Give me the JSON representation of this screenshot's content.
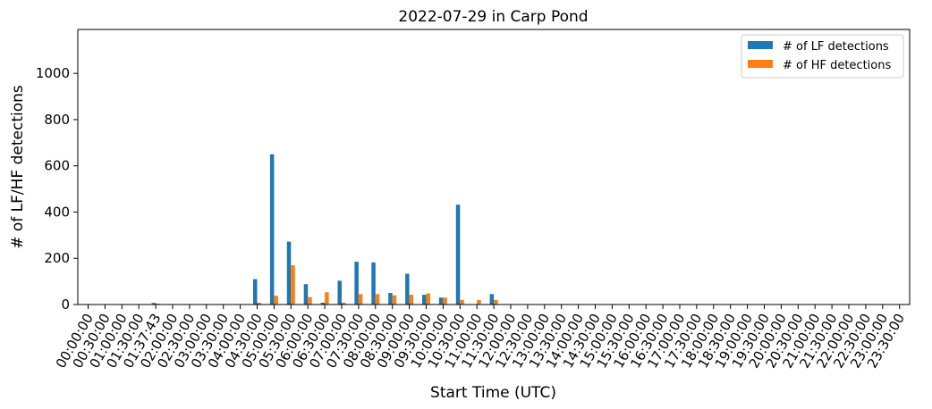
{
  "chart_data": {
    "type": "bar",
    "title": "2022-07-29 in Carp Pond",
    "xlabel": "Start Time (UTC)",
    "ylabel": "# of LF/HF detections",
    "ylim": [
      0,
      1190
    ],
    "yticks": [
      0,
      200,
      400,
      600,
      800,
      1000
    ],
    "legend_position": "top-right",
    "grid": false,
    "categories": [
      "00:00:00",
      "00:30:00",
      "01:00:00",
      "01:30:00",
      "01:37:43",
      "02:00:00",
      "02:30:00",
      "03:00:00",
      "03:30:00",
      "04:00:00",
      "04:30:00",
      "05:00:00",
      "05:30:00",
      "06:00:00",
      "06:30:00",
      "07:00:00",
      "07:30:00",
      "08:00:00",
      "08:30:00",
      "09:00:00",
      "09:30:00",
      "10:00:00",
      "10:30:00",
      "11:00:00",
      "11:30:00",
      "12:00:00",
      "12:30:00",
      "13:00:00",
      "13:30:00",
      "14:00:00",
      "14:30:00",
      "15:00:00",
      "15:30:00",
      "16:00:00",
      "16:30:00",
      "17:00:00",
      "17:30:00",
      "18:00:00",
      "18:30:00",
      "19:00:00",
      "19:30:00",
      "20:00:00",
      "20:30:00",
      "21:00:00",
      "21:30:00",
      "22:00:00",
      "22:30:00",
      "23:00:00",
      "23:30:00"
    ],
    "series": [
      {
        "name": "# of LF detections",
        "color": "#1f77b4",
        "values": [
          0,
          0,
          0,
          0,
          7,
          0,
          0,
          0,
          0,
          0,
          110,
          650,
          272,
          88,
          8,
          103,
          185,
          182,
          50,
          133,
          42,
          30,
          432,
          0,
          45,
          0,
          0,
          0,
          0,
          0,
          0,
          0,
          0,
          0,
          0,
          0,
          0,
          0,
          0,
          0,
          0,
          0,
          0,
          0,
          0,
          0,
          0,
          0,
          0
        ]
      },
      {
        "name": "# of HF detections",
        "color": "#ff7f0e",
        "values": [
          0,
          0,
          0,
          0,
          4,
          0,
          0,
          0,
          0,
          0,
          8,
          38,
          170,
          32,
          53,
          8,
          45,
          45,
          40,
          42,
          48,
          30,
          20,
          20,
          20,
          0,
          0,
          0,
          0,
          0,
          0,
          0,
          0,
          0,
          0,
          0,
          0,
          0,
          0,
          0,
          0,
          0,
          0,
          0,
          0,
          0,
          0,
          0,
          0
        ]
      }
    ]
  }
}
